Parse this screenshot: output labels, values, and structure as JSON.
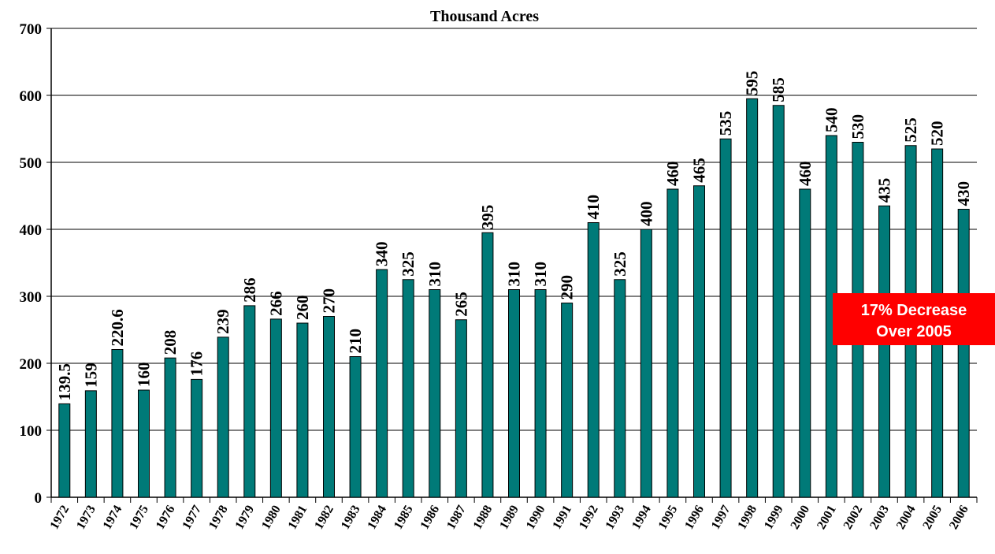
{
  "chart_data": {
    "type": "bar",
    "title": "Thousand Acres",
    "categories": [
      "1972",
      "1973",
      "1974",
      "1975",
      "1976",
      "1977",
      "1978",
      "1979",
      "1980",
      "1981",
      "1982",
      "1983",
      "1984",
      "1985",
      "1986",
      "1987",
      "1988",
      "1989",
      "1990",
      "1991",
      "1992",
      "1993",
      "1994",
      "1995",
      "1996",
      "1997",
      "1998",
      "1999",
      "2000",
      "2001",
      "2002",
      "2003",
      "2004",
      "2005",
      "2006"
    ],
    "values": [
      139.5,
      159,
      220.6,
      160,
      208,
      176,
      239,
      286,
      266,
      260,
      270,
      210,
      340,
      325,
      310,
      265,
      395,
      310,
      310,
      290,
      410,
      325,
      400,
      460,
      465,
      535,
      595,
      585,
      460,
      540,
      530,
      435,
      525,
      520,
      430
    ],
    "color": "#007a78",
    "ylim": [
      0,
      700
    ],
    "yticks": [
      0,
      100,
      200,
      300,
      400,
      500,
      600,
      700
    ],
    "grid": true,
    "annotation": [
      "17% Decrease",
      "Over 2005"
    ],
    "annotation_color": "#ff0000"
  }
}
